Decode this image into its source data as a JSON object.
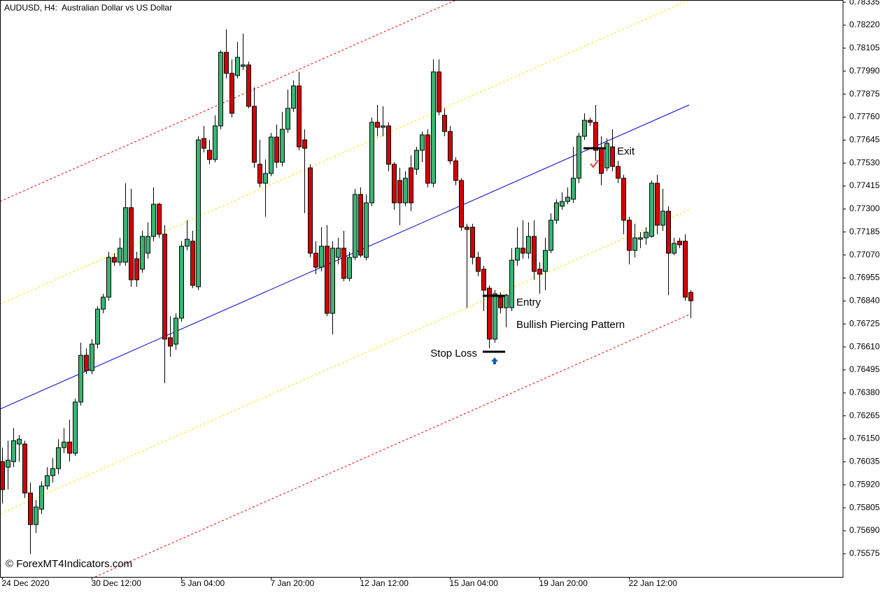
{
  "chart_data": {
    "type": "candlestick",
    "title": "AUDUSD, H4:  Australian Dollar vs US Dollar",
    "watermark": "© ForexMT4Indicators.com",
    "annotations": {
      "entry": "Entry",
      "exit": "Exit",
      "stop_loss": "Stop Loss",
      "pattern": "Bullish Piercing Pattern"
    },
    "up_color": "#3cb371",
    "down_color": "#d40000",
    "categories": [
      "24 Dec 2020",
      null,
      null,
      null,
      null,
      null,
      null,
      null,
      null,
      null,
      null,
      null,
      null,
      null,
      null,
      null,
      "30 Dec 12:00",
      null,
      null,
      null,
      null,
      null,
      null,
      null,
      null,
      null,
      null,
      null,
      null,
      null,
      null,
      null,
      "5 Jan 04:00",
      null,
      null,
      null,
      null,
      null,
      null,
      null,
      null,
      null,
      null,
      null,
      null,
      null,
      null,
      null,
      "7 Jan 20:00",
      null,
      null,
      null,
      null,
      null,
      null,
      null,
      null,
      null,
      null,
      null,
      null,
      null,
      null,
      null,
      "12 Jan 12:00",
      null,
      null,
      null,
      null,
      null,
      null,
      null,
      null,
      null,
      null,
      null,
      null,
      null,
      null,
      null,
      "15 Jan 04:00",
      null,
      null,
      null,
      null,
      null,
      null,
      null,
      null,
      null,
      null,
      null,
      null,
      null,
      null,
      null,
      "19 Jan 20:00",
      null,
      null,
      null,
      null,
      null,
      null,
      null,
      null,
      null,
      null,
      null,
      null,
      null,
      null,
      null,
      "22 Jan 12:00",
      null,
      null,
      null,
      null,
      null,
      null,
      null,
      null,
      null,
      null,
      null
    ],
    "open": [
      0.76036,
      0.76008,
      0.76036,
      0.76124,
      0.76124,
      0.75879,
      0.75721,
      0.75798,
      0.75914,
      0.75966,
      0.76001,
      0.76106,
      0.76134,
      0.76078,
      0.76334,
      0.76568,
      0.76491,
      0.76624,
      0.76799,
      0.76859,
      0.77058,
      0.77034,
      0.77034,
      0.77307,
      0.77051,
      0.76999,
      0.77079,
      0.77163,
      0.77324,
      0.77174,
      0.76656,
      0.76624,
      0.76754,
      0.77114,
      0.77139,
      0.76911,
      0.77653,
      0.77594,
      0.77548,
      0.77716,
      0.78084,
      0.77979,
      0.77968,
      0.78014,
      0.78021,
      0.77814,
      0.77524,
      0.77429,
      0.77478,
      0.7766,
      0.77534,
      0.77699,
      0.77804,
      0.77916,
      0.77646,
      0.77506,
      0.77079,
      0.77009,
      0.77114,
      0.76778,
      0.77058,
      0.77104,
      0.76953,
      0.77058,
      0.77373,
      0.77058,
      0.77331,
      0.77734,
      0.77709,
      0.77716,
      0.77524,
      0.77443,
      0.77331,
      0.77506,
      0.77499,
      0.77594,
      0.77671,
      0.77429,
      0.77986,
      0.77769,
      0.77688,
      0.77541,
      0.77443,
      0.77209,
      0.77209,
      0.77058,
      0.76999,
      0.76904,
      0.76649,
      0.76859,
      0.76806,
      0.76806,
      0.77044,
      0.77104,
      0.77079,
      0.77163,
      0.76999,
      0.76988,
      0.77093,
      0.77244,
      0.77314,
      0.77338,
      0.77349,
      0.77454,
      0.77664,
      0.77744,
      0.77734,
      0.77604,
      0.77506,
      0.77611,
      0.77513,
      0.77454,
      0.77244,
      0.77093,
      0.77149,
      0.77156,
      0.77163,
      0.77429,
      0.77219,
      0.77289,
      0.77079,
      0.77139,
      0.77139,
      0.76883
    ],
    "high": [
      0.76106,
      0.76141,
      0.76204,
      0.76169,
      0.76141,
      0.75931,
      0.75844,
      0.75938,
      0.76008,
      0.76054,
      0.76148,
      0.76204,
      0.76246,
      0.76351,
      0.76631,
      0.76603,
      0.76649,
      0.76813,
      0.76876,
      0.77086,
      0.77079,
      0.77156,
      0.77429,
      0.77401,
      0.77086,
      0.77191,
      0.77233,
      0.77408,
      0.77331,
      0.77219,
      0.76764,
      0.76778,
      0.77139,
      0.77244,
      0.77191,
      0.77664,
      0.77716,
      0.77646,
      0.77769,
      0.78094,
      0.78199,
      0.78049,
      0.78136,
      0.78178,
      0.78038,
      0.77909,
      0.77646,
      0.77548,
      0.77681,
      0.77723,
      0.77786,
      0.77898,
      0.77944,
      0.77986,
      0.77699,
      0.77524,
      0.77139,
      0.77209,
      0.77219,
      0.77139,
      0.77156,
      0.77191,
      0.77086,
      0.77401,
      0.77408,
      0.77373,
      0.77758,
      0.77821,
      0.77814,
      0.77734,
      0.77534,
      0.77506,
      0.77489,
      0.77569,
      0.77611,
      0.77688,
      0.77699,
      0.78049,
      0.78049,
      0.77804,
      0.77716,
      0.77559,
      0.77454,
      0.77226,
      0.77226,
      0.77086,
      0.77016,
      0.76918,
      0.76894,
      0.76883,
      0.76876,
      0.77104,
      0.77209,
      0.77244,
      0.77233,
      0.77244,
      0.77034,
      0.77156,
      0.77279,
      0.77349,
      0.77384,
      0.77408,
      0.77611,
      0.77681,
      0.77779,
      0.77758,
      0.77821,
      0.77664,
      0.77653,
      0.77699,
      0.77541,
      0.77471,
      0.77261,
      0.77226,
      0.77184,
      0.77209,
      0.77443,
      0.77471,
      0.77401,
      0.77314,
      0.77156,
      0.77156,
      0.77174,
      0.76894
    ],
    "low": [
      0.75826,
      0.75896,
      0.76008,
      0.76036,
      0.75854,
      0.75574,
      0.75679,
      0.75774,
      0.75896,
      0.75931,
      0.75973,
      0.76078,
      0.76036,
      0.76064,
      0.76316,
      0.76474,
      0.76474,
      0.76603,
      0.76778,
      0.76841,
      0.77016,
      0.77016,
      0.77016,
      0.76911,
      0.76911,
      0.76981,
      0.77051,
      0.77139,
      0.77156,
      0.76428,
      0.76561,
      0.76596,
      0.76736,
      0.77093,
      0.76904,
      0.76894,
      0.77583,
      0.77524,
      0.77534,
      0.77699,
      0.77954,
      0.77758,
      0.77954,
      0.77996,
      0.77804,
      0.77506,
      0.77408,
      0.77261,
      0.77464,
      0.77506,
      0.77513,
      0.77681,
      0.77786,
      0.77594,
      0.77279,
      0.77058,
      0.76974,
      0.76988,
      0.76764,
      0.76673,
      0.77023,
      0.76939,
      0.76939,
      0.77044,
      0.77058,
      0.77044,
      0.77314,
      0.77664,
      0.77664,
      0.77489,
      0.77296,
      0.77219,
      0.77314,
      0.77289,
      0.77471,
      0.77534,
      0.77408,
      0.77408,
      0.77769,
      0.77664,
      0.77524,
      0.77419,
      0.77191,
      0.76806,
      0.77023,
      0.76964,
      0.76789,
      0.76603,
      0.76631,
      0.76778,
      0.76708,
      0.76789,
      0.77016,
      0.77051,
      0.77051,
      0.76946,
      0.76876,
      0.76894,
      0.77079,
      0.77226,
      0.77296,
      0.77324,
      0.77331,
      0.77429,
      0.77646,
      0.77716,
      0.77541,
      0.77419,
      0.77489,
      0.77489,
      0.77429,
      0.77174,
      0.77023,
      0.77058,
      0.77104,
      0.77121,
      0.77156,
      0.77174,
      0.77191,
      0.76869,
      0.77069,
      0.77104,
      0.76841,
      0.76754
    ],
    "close": [
      0.75896,
      0.76043,
      0.76141,
      0.76148,
      0.75879,
      0.75721,
      0.75809,
      0.75914,
      0.75966,
      0.76001,
      0.76106,
      0.76134,
      0.76078,
      0.76334,
      0.76568,
      0.76491,
      0.76624,
      0.76799,
      0.76859,
      0.77058,
      0.77034,
      0.77104,
      0.77307,
      0.76946,
      0.76946,
      0.77163,
      0.77163,
      0.77324,
      0.77174,
      0.76649,
      0.76614,
      0.76754,
      0.77114,
      0.77149,
      0.76918,
      0.77646,
      0.77604,
      0.77548,
      0.77716,
      0.78084,
      0.77979,
      0.77779,
      0.78059,
      0.78021,
      0.77814,
      0.77534,
      0.77429,
      0.77478,
      0.7766,
      0.77534,
      0.77699,
      0.77804,
      0.77916,
      0.77611,
      0.77604,
      0.77079,
      0.77009,
      0.77114,
      0.76778,
      0.77104,
      0.77104,
      0.76953,
      0.77058,
      0.77373,
      0.77069,
      0.77331,
      0.77734,
      0.77709,
      0.77716,
      0.77524,
      0.77331,
      0.77331,
      0.77454,
      0.77331,
      0.77594,
      0.77671,
      0.77429,
      0.77986,
      0.77786,
      0.77688,
      0.77541,
      0.77443,
      0.77209,
      0.77198,
      0.77058,
      0.76988,
      0.76894,
      0.76649,
      0.76876,
      0.76806,
      0.76869,
      0.77044,
      0.77104,
      0.77079,
      0.77163,
      0.76988,
      0.76974,
      0.77093,
      0.77244,
      0.77331,
      0.77338,
      0.77359,
      0.77454,
      0.77664,
      0.77744,
      0.77734,
      0.77594,
      0.77478,
      0.77629,
      0.77513,
      0.77454,
      0.77244,
      0.77093,
      0.77156,
      0.77156,
      0.77184,
      0.77429,
      0.77219,
      0.77289,
      0.77079,
      0.77128,
      0.77121,
      0.76859,
      0.76841
    ],
    "ylim": [
      0.75459,
      0.78346
    ],
    "yticks": [
      0.78335,
      {
        "value": 0.7822,
        "label": "0.78220"
      },
      0.78105,
      {
        "value": 0.7799,
        "label": "0.77990"
      },
      0.77875,
      {
        "value": 0.7776,
        "label": "0.77760"
      },
      0.77645,
      {
        "value": 0.7753,
        "label": "0.77530"
      },
      0.77415,
      {
        "value": 0.773,
        "label": "0.77300"
      },
      0.77185,
      {
        "value": 0.7707,
        "label": "0.77070"
      },
      0.76955,
      {
        "value": 0.7684,
        "label": "0.76840"
      },
      0.76725,
      {
        "value": 0.7661,
        "label": "0.76610"
      },
      0.76495,
      {
        "value": 0.7638,
        "label": "0.76380"
      },
      0.76265,
      {
        "value": 0.7615,
        "label": "0.76150"
      },
      0.76035,
      {
        "value": 0.7592,
        "label": "0.75920"
      },
      0.75805,
      {
        "value": 0.7569,
        "label": "0.75690"
      },
      0.75575
    ]
  }
}
